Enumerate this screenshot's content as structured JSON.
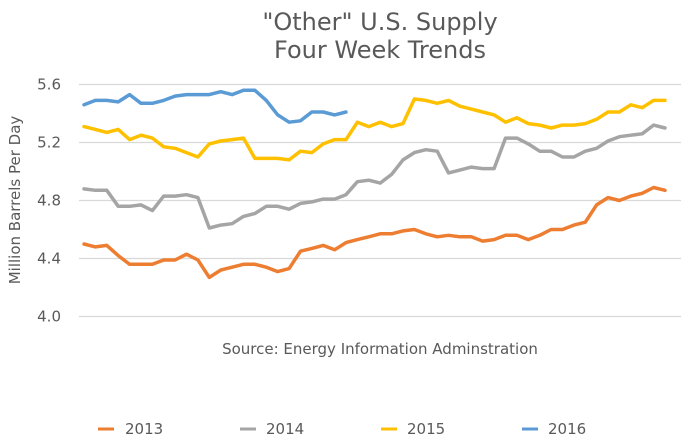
{
  "chart_data": {
    "type": "line",
    "title": [
      "\"Other\" U.S. Supply",
      "Four Week Trends"
    ],
    "xlabel": "",
    "ylabel": "Million Barrels Per Day",
    "annotation": "Source: Energy Information Adminstration",
    "ylim": [
      4.0,
      5.6
    ],
    "yticks": [
      "5.6",
      "5.2",
      "4.8",
      "4.4",
      "4.0"
    ],
    "ytick_values": [
      5.6,
      5.2,
      4.8,
      4.4,
      4.0
    ],
    "grid": true,
    "legend_position": "bottom",
    "x_count": 52,
    "series": [
      {
        "name": "2013",
        "color": "#ed7d31",
        "values": [
          4.5,
          4.48,
          4.49,
          4.42,
          4.36,
          4.36,
          4.36,
          4.39,
          4.39,
          4.43,
          4.39,
          4.27,
          4.32,
          4.34,
          4.36,
          4.36,
          4.34,
          4.31,
          4.33,
          4.45,
          4.47,
          4.49,
          4.46,
          4.51,
          4.53,
          4.55,
          4.57,
          4.57,
          4.59,
          4.6,
          4.57,
          4.55,
          4.56,
          4.55,
          4.55,
          4.52,
          4.53,
          4.56,
          4.56,
          4.53,
          4.56,
          4.6,
          4.6,
          4.63,
          4.65,
          4.77,
          4.82,
          4.8,
          4.83,
          4.85,
          4.89,
          4.87
        ]
      },
      {
        "name": "2014",
        "color": "#a5a5a5",
        "values": [
          4.88,
          4.87,
          4.87,
          4.76,
          4.76,
          4.77,
          4.73,
          4.83,
          4.83,
          4.84,
          4.82,
          4.61,
          4.63,
          4.64,
          4.69,
          4.71,
          4.76,
          4.76,
          4.74,
          4.78,
          4.79,
          4.81,
          4.81,
          4.84,
          4.93,
          4.94,
          4.92,
          4.98,
          5.08,
          5.13,
          5.15,
          5.14,
          4.99,
          5.01,
          5.03,
          5.02,
          5.02,
          5.23,
          5.23,
          5.19,
          5.14,
          5.14,
          5.1,
          5.1,
          5.14,
          5.16,
          5.21,
          5.24,
          5.25,
          5.26,
          5.32,
          5.3
        ]
      },
      {
        "name": "2015",
        "color": "#ffc000",
        "values": [
          5.31,
          5.29,
          5.27,
          5.29,
          5.22,
          5.25,
          5.23,
          5.17,
          5.16,
          5.13,
          5.1,
          5.19,
          5.21,
          5.22,
          5.23,
          5.09,
          5.09,
          5.09,
          5.08,
          5.14,
          5.13,
          5.19,
          5.22,
          5.22,
          5.34,
          5.31,
          5.34,
          5.31,
          5.33,
          5.5,
          5.49,
          5.47,
          5.49,
          5.45,
          5.43,
          5.41,
          5.39,
          5.34,
          5.37,
          5.33,
          5.32,
          5.3,
          5.32,
          5.32,
          5.33,
          5.36,
          5.41,
          5.41,
          5.46,
          5.44,
          5.49,
          5.49
        ]
      },
      {
        "name": "2016",
        "color": "#5b9bd5",
        "values": [
          5.46,
          5.49,
          5.49,
          5.48,
          5.53,
          5.47,
          5.47,
          5.49,
          5.52,
          5.53,
          5.53,
          5.53,
          5.55,
          5.53,
          5.56,
          5.56,
          5.49,
          5.39,
          5.34,
          5.35,
          5.41,
          5.41,
          5.39,
          5.41
        ]
      }
    ]
  }
}
